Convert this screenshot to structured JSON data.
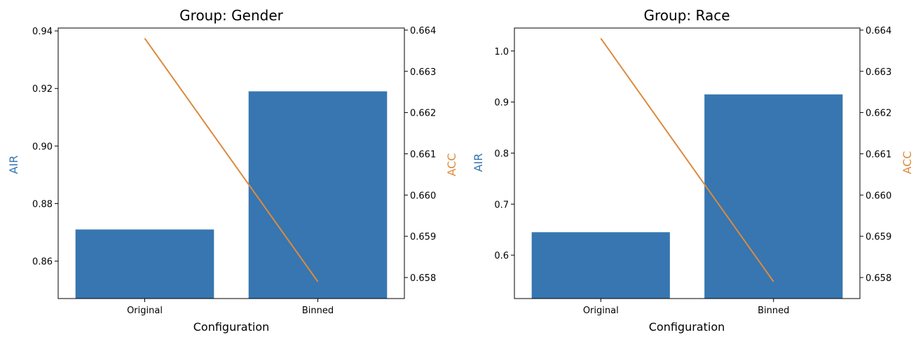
{
  "colors": {
    "bar": "#3776b0",
    "line": "#dd8a3e",
    "left_axis_label": "#3776b0",
    "right_axis_label": "#dd8a3e",
    "axes": "#000000"
  },
  "chart_data": [
    {
      "type": "bar",
      "title": "Group: Gender",
      "xlabel": "Configuration",
      "ylabel": "AIR",
      "y2label": "ACC",
      "categories": [
        "Original",
        "Binned"
      ],
      "values": [
        0.871,
        0.919
      ],
      "ylim": [
        0.847,
        0.941
      ],
      "yticks": [
        "0.86",
        "0.88",
        "0.90",
        "0.92",
        "0.94"
      ],
      "secondary": {
        "type": "line",
        "values": [
          0.6638,
          0.6579
        ],
        "ylim": [
          0.65749,
          0.66405
        ],
        "yticks": [
          "0.658",
          "0.659",
          "0.660",
          "0.661",
          "0.662",
          "0.663",
          "0.664"
        ]
      },
      "grid": false,
      "legend": false
    },
    {
      "type": "bar",
      "title": "Group: Race",
      "xlabel": "Configuration",
      "ylabel": "AIR",
      "y2label": "ACC",
      "categories": [
        "Original",
        "Binned"
      ],
      "values": [
        0.645,
        0.915
      ],
      "ylim": [
        0.515,
        1.045
      ],
      "yticks": [
        "0.6",
        "0.7",
        "0.8",
        "0.9",
        "1.0"
      ],
      "secondary": {
        "type": "line",
        "values": [
          0.6638,
          0.6579
        ],
        "ylim": [
          0.65749,
          0.66405
        ],
        "yticks": [
          "0.658",
          "0.659",
          "0.660",
          "0.661",
          "0.662",
          "0.663",
          "0.664"
        ]
      },
      "grid": false,
      "legend": false
    }
  ]
}
